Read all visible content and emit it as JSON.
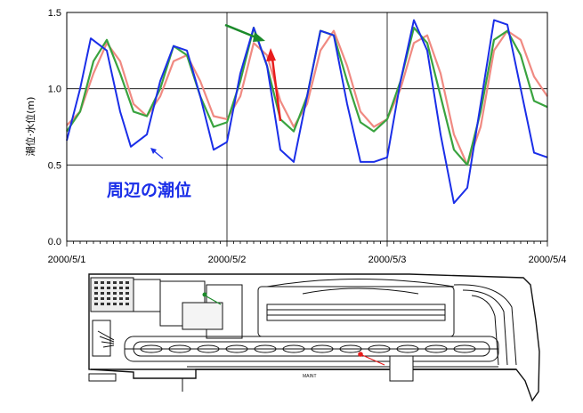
{
  "chart_data": {
    "type": "line",
    "ylabel": "潮位·水位(m)",
    "ylim": [
      0.0,
      1.5
    ],
    "yticks": [
      "0.0",
      "0.5",
      "1.0",
      "1.5"
    ],
    "x_range_hours": [
      0,
      72
    ],
    "xticks": [
      {
        "label": "2000/5/1",
        "hour": 0
      },
      {
        "label": "2000/5/2",
        "hour": 24
      },
      {
        "label": "2000/5/3",
        "hour": 48
      },
      {
        "label": "2000/5/4",
        "hour": 72
      }
    ],
    "grid": true,
    "annotation": "周辺の潮位",
    "series": [
      {
        "color": "#1a2ee8",
        "x": [
          0,
          2,
          3.6,
          6,
          8,
          9.6,
          12,
          14,
          16,
          18,
          20,
          22,
          24,
          26,
          28,
          30,
          32,
          34,
          36,
          38,
          40,
          42,
          44,
          46,
          48,
          50,
          52,
          54,
          56,
          58,
          60,
          62,
          64,
          66,
          68,
          70,
          72
        ],
        "y": [
          0.66,
          1.0,
          1.33,
          1.25,
          0.85,
          0.62,
          0.7,
          1.05,
          1.28,
          1.25,
          0.95,
          0.6,
          0.65,
          1.1,
          1.4,
          1.15,
          0.6,
          0.52,
          0.95,
          1.38,
          1.35,
          0.9,
          0.52,
          0.52,
          0.55,
          1.05,
          1.45,
          1.25,
          0.7,
          0.25,
          0.35,
          0.9,
          1.45,
          1.42,
          1.0,
          0.58,
          0.55
        ]
      },
      {
        "color": "#39a33f",
        "x": [
          0,
          2,
          4,
          6,
          8,
          10,
          12,
          14,
          16,
          18,
          20,
          22,
          24,
          26,
          28,
          30,
          32,
          34,
          36,
          38,
          40,
          42,
          44,
          46,
          48,
          50,
          52,
          54,
          56,
          58,
          60,
          62,
          64,
          66,
          68,
          70,
          72
        ],
        "y": [
          0.72,
          0.85,
          1.18,
          1.32,
          1.1,
          0.85,
          0.82,
          1.0,
          1.28,
          1.22,
          0.95,
          0.75,
          0.78,
          1.05,
          1.4,
          1.15,
          0.8,
          0.72,
          0.95,
          1.38,
          1.35,
          1.05,
          0.78,
          0.72,
          0.8,
          1.05,
          1.4,
          1.3,
          0.95,
          0.6,
          0.5,
          0.85,
          1.32,
          1.38,
          1.22,
          0.92,
          0.88
        ]
      },
      {
        "color": "#f08a82",
        "x": [
          0,
          2,
          4,
          6,
          8,
          10,
          12,
          14,
          16,
          18,
          20,
          22,
          24,
          26,
          28,
          30,
          32,
          34,
          36,
          38,
          40,
          42,
          44,
          46,
          48,
          50,
          52,
          54,
          56,
          58,
          60,
          62,
          64,
          66,
          68,
          70,
          72
        ],
        "y": [
          0.76,
          0.85,
          1.1,
          1.3,
          1.18,
          0.9,
          0.82,
          0.95,
          1.18,
          1.22,
          1.05,
          0.82,
          0.8,
          0.95,
          1.3,
          1.22,
          0.92,
          0.75,
          0.9,
          1.25,
          1.38,
          1.15,
          0.85,
          0.75,
          0.8,
          1.0,
          1.3,
          1.35,
          1.1,
          0.7,
          0.5,
          0.75,
          1.25,
          1.38,
          1.32,
          1.08,
          0.95
        ]
      }
    ]
  },
  "plan": {
    "label": "MAINT"
  }
}
